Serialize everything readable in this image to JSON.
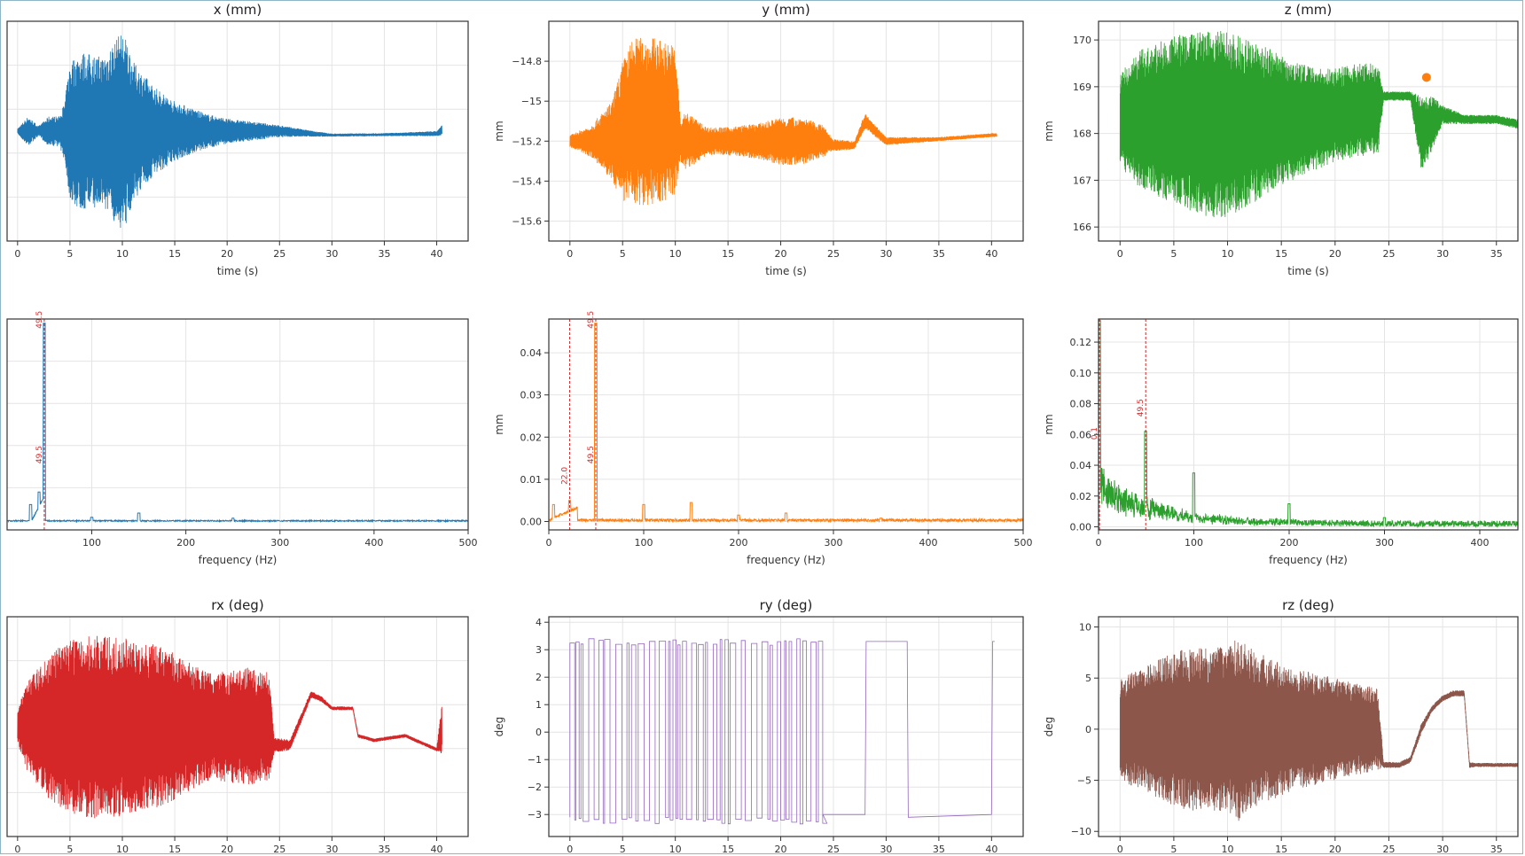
{
  "chart_data": [
    {
      "id": "x",
      "type": "line",
      "title": "x (mm)",
      "xlabel": "time (s)",
      "ylabel": "",
      "color": "#1f77b4",
      "xlim": [
        -1,
        43
      ],
      "ylim": [
        -22,
        22
      ],
      "xticks": [
        0,
        5,
        10,
        15,
        20,
        25,
        30,
        35,
        40
      ],
      "yticks": [],
      "envelope": {
        "x": [
          0,
          1,
          2,
          3,
          4,
          4.5,
          5,
          6,
          8,
          10,
          10.5,
          11,
          13,
          15,
          18,
          20,
          22,
          25,
          28,
          30,
          35,
          40,
          40.5
        ],
        "amp": [
          0.5,
          3,
          1,
          3,
          3,
          6,
          14,
          16,
          15,
          20,
          18,
          14,
          9,
          6,
          3.5,
          2.5,
          2,
          1.2,
          0.6,
          0.3,
          0.3,
          0.5,
          1
        ],
        "base": [
          0,
          0,
          0,
          0,
          0,
          0,
          0,
          0,
          0,
          0,
          0,
          0,
          0,
          0,
          0,
          0,
          0,
          0,
          -0.5,
          -0.8,
          -0.7,
          -0.5,
          0.2
        ]
      }
    },
    {
      "id": "y",
      "type": "line",
      "title": "y (mm)",
      "xlabel": "time (s)",
      "ylabel": "mm",
      "color": "#ff7f0e",
      "xlim": [
        -2,
        43
      ],
      "ylim": [
        -15.7,
        -14.6
      ],
      "xticks": [
        0,
        5,
        10,
        15,
        20,
        25,
        30,
        35,
        40
      ],
      "yticks": [
        -14.8,
        -15.0,
        -15.2,
        -15.4,
        -15.6
      ],
      "envelope": {
        "x": [
          0,
          2,
          4,
          5,
          6,
          8,
          10,
          10.5,
          11,
          13,
          15,
          18,
          20,
          22,
          24,
          25,
          27,
          28,
          30,
          35,
          40,
          40.5
        ],
        "amp": [
          0.03,
          0.08,
          0.2,
          0.35,
          0.42,
          0.42,
          0.38,
          0.1,
          0.15,
          0.07,
          0.07,
          0.09,
          0.12,
          0.12,
          0.08,
          0.03,
          0.02,
          0.04,
          0.02,
          0.01,
          0.01,
          0.01
        ],
        "base": [
          -15.2,
          -15.2,
          -15.2,
          -15.15,
          -15.1,
          -15.1,
          -15.1,
          -15.2,
          -15.2,
          -15.2,
          -15.2,
          -15.2,
          -15.2,
          -15.2,
          -15.2,
          -15.22,
          -15.22,
          -15.1,
          -15.2,
          -15.19,
          -15.17,
          -15.17
        ]
      }
    },
    {
      "id": "z",
      "type": "line",
      "title": "z (mm)",
      "xlabel": "time (s)",
      "ylabel": "mm",
      "color": "#2ca02c",
      "xlim": [
        -2,
        37
      ],
      "ylim": [
        165.7,
        170.4
      ],
      "xticks": [
        0,
        5,
        10,
        15,
        20,
        25,
        30,
        35
      ],
      "yticks": [
        170,
        169,
        168,
        167,
        166
      ],
      "envelope": {
        "x": [
          0,
          2,
          5,
          8,
          10,
          12,
          15,
          18,
          20,
          22,
          24,
          24.5,
          26,
          27,
          28,
          29,
          30,
          32,
          35,
          37
        ],
        "amp": [
          1.0,
          1.5,
          1.8,
          2.0,
          2.0,
          1.8,
          1.4,
          1.1,
          1.0,
          1.0,
          1.0,
          0.1,
          0.1,
          0.1,
          0.8,
          0.6,
          0.2,
          0.1,
          0.1,
          0.1
        ],
        "base": [
          168.3,
          168.3,
          168.3,
          168.2,
          168.2,
          168.2,
          168.3,
          168.3,
          168.4,
          168.5,
          168.5,
          168.8,
          168.8,
          168.8,
          168,
          168.2,
          168.4,
          168.3,
          168.3,
          168.2
        ]
      },
      "marker": {
        "x": 28.5,
        "y": 169.2,
        "color": "#ff7f0e"
      }
    },
    {
      "id": "fx",
      "type": "line",
      "title": "",
      "xlabel": "frequency (Hz)",
      "ylabel": "",
      "color": "#1f77b4",
      "xlim": [
        10,
        500
      ],
      "ylim": [
        -0.002,
        0.048
      ],
      "xticks": [
        100,
        200,
        300,
        400,
        500
      ],
      "yticks": [],
      "peaks": [
        [
          35,
          0.004
        ],
        [
          44,
          0.007
        ],
        [
          49.5,
          0.047
        ],
        [
          100,
          0.001
        ],
        [
          150,
          0.002
        ],
        [
          250,
          0.0008
        ]
      ],
      "noise": 0.0003,
      "hump": [
        36,
        50,
        0.006
      ],
      "vlines": [
        49.5
      ],
      "annotations": [
        {
          "x": 49.5,
          "y": 0.047,
          "text": "49.5"
        },
        {
          "x": 49.5,
          "y": 0.015,
          "text": "49.5"
        }
      ]
    },
    {
      "id": "fy",
      "type": "line",
      "title": "",
      "xlabel": "frequency (Hz)",
      "ylabel": "mm",
      "color": "#ff7f0e",
      "xlim": [
        0,
        500
      ],
      "ylim": [
        -0.002,
        0.048
      ],
      "xticks": [
        0,
        100,
        200,
        300,
        400,
        500
      ],
      "yticks": [
        0.0,
        0.01,
        0.02,
        0.03,
        0.04
      ],
      "peaks": [
        [
          5,
          0.004
        ],
        [
          22,
          0.005
        ],
        [
          49.5,
          0.047
        ],
        [
          100,
          0.004
        ],
        [
          150,
          0.0045
        ],
        [
          200,
          0.0015
        ],
        [
          250,
          0.002
        ],
        [
          350,
          0.0008
        ]
      ],
      "noise": 0.0006,
      "hump": [
        0,
        30,
        0.003
      ],
      "vlines": [
        22,
        49.5
      ],
      "annotations": [
        {
          "x": 22,
          "y": 0.01,
          "text": "22.0"
        },
        {
          "x": 49.5,
          "y": 0.047,
          "text": "49.5"
        },
        {
          "x": 49.5,
          "y": 0.015,
          "text": "49.5"
        }
      ]
    },
    {
      "id": "fz",
      "type": "line",
      "title": "",
      "xlabel": "frequency (Hz)",
      "ylabel": "mm",
      "color": "#2ca02c",
      "xlim": [
        0,
        440
      ],
      "ylim": [
        -0.002,
        0.135
      ],
      "xticks": [
        0,
        100,
        200,
        300,
        400
      ],
      "yticks": [
        0.0,
        0.02,
        0.04,
        0.06,
        0.08,
        0.1,
        0.12
      ],
      "peaks": [
        [
          1,
          0.134
        ],
        [
          49.5,
          0.062
        ],
        [
          100,
          0.035
        ],
        [
          200,
          0.015
        ],
        [
          300,
          0.006
        ]
      ],
      "noise": 0.004,
      "decay": [
        0,
        0.03,
        60
      ],
      "vlines": [
        1,
        49.5
      ],
      "annotations": [
        {
          "x": 49.5,
          "y": 0.075,
          "text": "49.5"
        },
        {
          "x": 1,
          "y": 0.06,
          "text": "0.1"
        }
      ]
    },
    {
      "id": "rx",
      "type": "line",
      "title": "rx (deg)",
      "xlabel": "",
      "ylabel": "",
      "color": "#d62728",
      "xlim": [
        -1,
        43
      ],
      "ylim": [
        -12,
        12
      ],
      "xticks": [
        0,
        5,
        10,
        15,
        20,
        25,
        30,
        35,
        40
      ],
      "yticks": [],
      "envelope": {
        "x": [
          0,
          1,
          3,
          5,
          7,
          9,
          11,
          13,
          15,
          18,
          20,
          22,
          23,
          24,
          24.5,
          26,
          28,
          29,
          30,
          32,
          32.5,
          34,
          37,
          40,
          40.5
        ],
        "amp": [
          2,
          5,
          8,
          9.5,
          10,
          10,
          9.5,
          9,
          8,
          6,
          6,
          6.5,
          6,
          6,
          0.8,
          0.6,
          0.4,
          0.3,
          0.2,
          0.2,
          0.2,
          0.2,
          0.2,
          0.2,
          3
        ],
        "base": [
          0,
          0,
          0,
          0,
          0,
          0,
          0,
          0,
          0,
          0,
          0,
          0,
          0,
          0,
          -2,
          -2,
          3.5,
          3,
          2,
          2,
          -1,
          -1.5,
          -1,
          -2.5,
          0
        ]
      }
    },
    {
      "id": "ry",
      "type": "line",
      "title": "ry (deg)",
      "xlabel": "",
      "ylabel": "deg",
      "color": "#9467bd",
      "xlim": [
        -2,
        43
      ],
      "ylim": [
        -3.8,
        4.2
      ],
      "xticks": [
        0,
        5,
        10,
        15,
        20,
        25,
        30,
        35,
        40
      ],
      "yticks": [
        4,
        3,
        2,
        1,
        0,
        -1,
        -2,
        -3
      ],
      "square": {
        "start": 0,
        "end": 24,
        "high": 3.4,
        "low": -3.1,
        "tail": [
          [
            24,
            -3.0
          ],
          [
            28,
            -3.0
          ],
          [
            28.1,
            3.3
          ],
          [
            32,
            3.3
          ],
          [
            32.1,
            -3.1
          ],
          [
            40,
            -3.0
          ],
          [
            40.1,
            3.3
          ],
          [
            40.3,
            3.3
          ]
        ]
      }
    },
    {
      "id": "rz",
      "type": "line",
      "title": "rz (deg)",
      "xlabel": "",
      "ylabel": "deg",
      "color": "#8c564b",
      "xlim": [
        -2,
        37
      ],
      "ylim": [
        -10.5,
        11
      ],
      "xticks": [
        0,
        5,
        10,
        15,
        20,
        25,
        30,
        35
      ],
      "yticks": [
        10,
        5,
        0,
        -5,
        -10
      ],
      "envelope": {
        "x": [
          0,
          2,
          4,
          6,
          8,
          10,
          11,
          12,
          14,
          16,
          18,
          20,
          22,
          24,
          24.5,
          26,
          27,
          28,
          29,
          30,
          31,
          32,
          32.5,
          33,
          35,
          37
        ],
        "amp": [
          5,
          6,
          7,
          8,
          8,
          8,
          9,
          8,
          7,
          6,
          5.5,
          5,
          4.5,
          4,
          0.3,
          0.3,
          0.3,
          0.5,
          0.3,
          0.3,
          0.3,
          0.3,
          0.3,
          0.2,
          0.2,
          0.2
        ],
        "base": [
          0,
          0,
          0,
          0,
          0,
          0,
          0,
          0,
          0,
          0,
          0,
          0,
          0,
          0,
          -3.5,
          -3.5,
          -3,
          0,
          2,
          3,
          3.5,
          3.5,
          -3.5,
          -3.5,
          -3.5,
          -3.5
        ]
      }
    }
  ]
}
